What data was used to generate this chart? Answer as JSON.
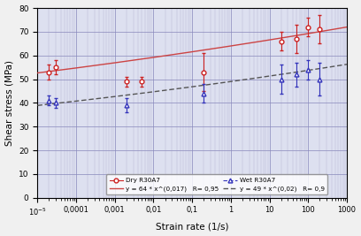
{
  "xlabel": "Strain rate (1/s)",
  "ylabel": "Shear stress (MPa)",
  "ylim": [
    0,
    80
  ],
  "yticks": [
    0,
    10,
    20,
    30,
    40,
    50,
    60,
    70,
    80
  ],
  "bg_color": "#dde0f0",
  "fig_color": "#f0f0f0",
  "dry_x": [
    2e-05,
    3e-05,
    0.002,
    0.005,
    0.2,
    20,
    50,
    100,
    200
  ],
  "dry_y": [
    53.0,
    55.0,
    49.0,
    49.0,
    53.0,
    66.0,
    67.0,
    72.0,
    71.0
  ],
  "dry_yerr": [
    3.0,
    3.0,
    2.0,
    2.0,
    8.0,
    4.0,
    6.0,
    4.0,
    6.0
  ],
  "dry_color": "#cc2222",
  "dry_label": "Dry R30A7",
  "wet_x": [
    2e-05,
    3e-05,
    0.002,
    0.2,
    20,
    50,
    100,
    200
  ],
  "wet_y": [
    41.0,
    40.0,
    39.0,
    44.0,
    50.0,
    52.0,
    54.0,
    50.0
  ],
  "wet_yerr": [
    2.0,
    2.0,
    3.0,
    4.0,
    6.0,
    5.0,
    4.0,
    7.0
  ],
  "wet_color": "#3333bb",
  "wet_label": "Wet R30A7",
  "fit_dry_a": 64,
  "fit_dry_b": 0.017,
  "fit_dry_label": "y = 64 * x^(0,017)   R= 0,95",
  "fit_dry_color": "#cc4444",
  "fit_wet_a": 49,
  "fit_wet_b": 0.02,
  "fit_wet_label": "y = 49 * x^(0,02)   R= 0,9",
  "fit_wet_color": "#555555",
  "xtick_positions": [
    1e-05,
    0.0001,
    0.001,
    0.01,
    0.1,
    1.0,
    10.0,
    100.0,
    1000.0
  ],
  "xtick_labels": [
    "10$^{-5}$",
    "0,0001",
    "0,001",
    "0,01",
    "0,1",
    "1",
    "10",
    "100",
    "1000"
  ]
}
